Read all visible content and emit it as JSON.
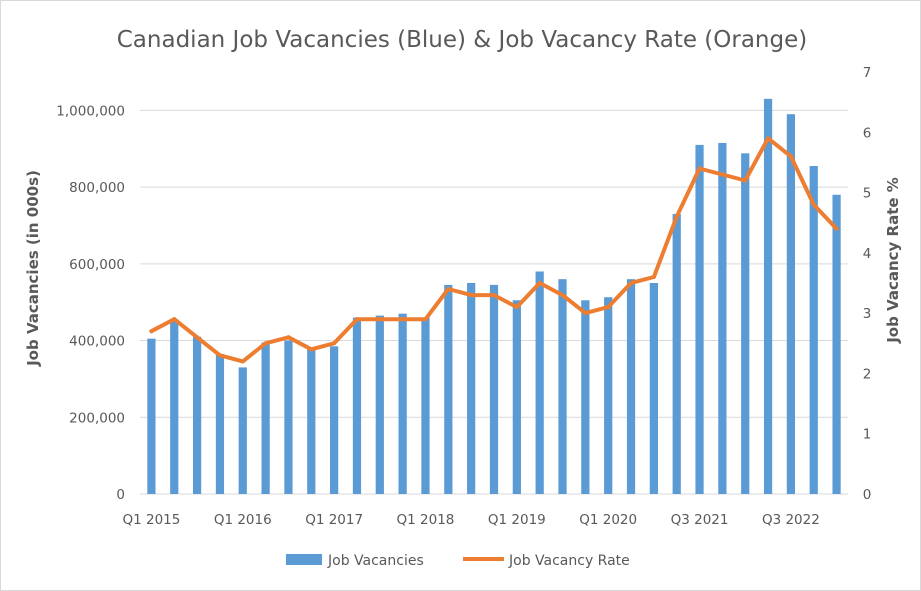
{
  "chart_data": {
    "type": "bar+line",
    "title": "Canadian Job Vacancies (Blue) & Job Vacancy Rate (Orange)",
    "ylabel": "Job Vacancies (in 000s)",
    "y2label": "Job Vacancy Rate %",
    "ylim": [
      0,
      1100000
    ],
    "y2lim": [
      0,
      7
    ],
    "yticks": [
      "0",
      "200,000",
      "400,000",
      "600,000",
      "800,000",
      "1,000,000"
    ],
    "y2ticks": [
      "0",
      "1",
      "2",
      "3",
      "4",
      "5",
      "6",
      "7"
    ],
    "xtick_labels": [
      {
        "index": 0,
        "label": "Q1 2015"
      },
      {
        "index": 4,
        "label": "Q1 2016"
      },
      {
        "index": 8,
        "label": "Q1 2017"
      },
      {
        "index": 12,
        "label": "Q1 2018"
      },
      {
        "index": 16,
        "label": "Q1 2019"
      },
      {
        "index": 20,
        "label": "Q1 2020"
      },
      {
        "index": 24,
        "label": "Q3 2021"
      },
      {
        "index": 28,
        "label": "Q3 2022"
      }
    ],
    "grid": true,
    "legend_position": "bottom",
    "series": [
      {
        "name": "Job Vacancies",
        "type": "bar",
        "axis": "left",
        "color": "#5b9bd5",
        "values": [
          405000,
          455000,
          410000,
          365000,
          330000,
          395000,
          400000,
          380000,
          385000,
          460000,
          465000,
          470000,
          460000,
          545000,
          550000,
          545000,
          505000,
          580000,
          560000,
          505000,
          513000,
          560000,
          550000,
          730000,
          910000,
          915000,
          888000,
          1030000,
          990000,
          855000,
          780000
        ]
      },
      {
        "name": "Job Vacancy Rate",
        "type": "line",
        "axis": "right",
        "color": "#ed7d31",
        "values": [
          2.7,
          2.9,
          2.6,
          2.3,
          2.2,
          2.5,
          2.6,
          2.4,
          2.5,
          2.9,
          2.9,
          2.9,
          2.9,
          3.4,
          3.3,
          3.3,
          3.1,
          3.5,
          3.3,
          3.0,
          3.1,
          3.5,
          3.6,
          4.6,
          5.4,
          5.3,
          5.2,
          5.9,
          5.6,
          4.8,
          4.4
        ]
      }
    ]
  }
}
